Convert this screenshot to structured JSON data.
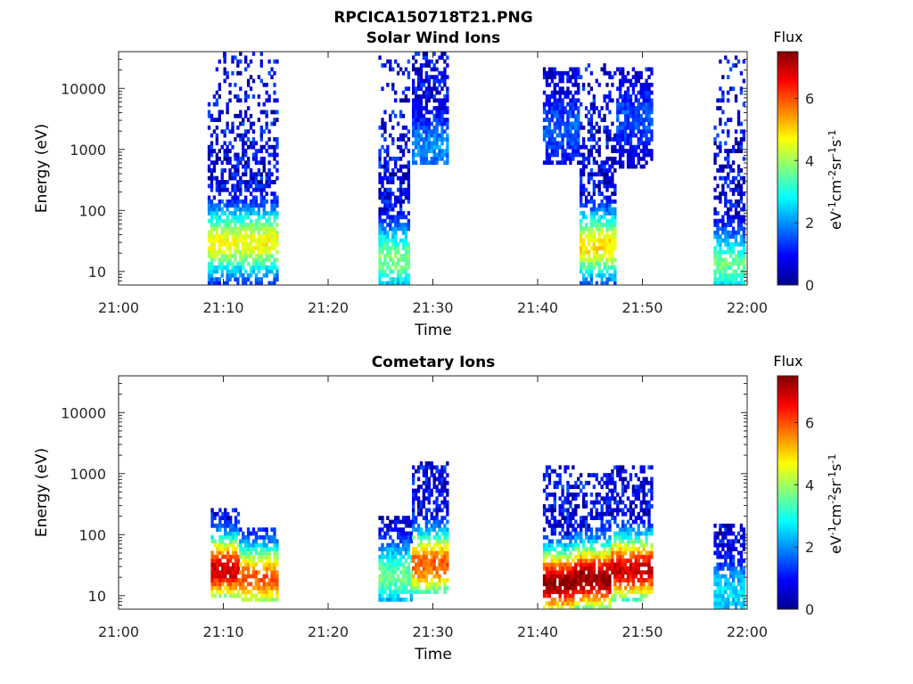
{
  "figure": {
    "title": "RPCICA150718T21.PNG"
  },
  "colormap": {
    "name": "jet",
    "stops": [
      "#00008f",
      "#0000ff",
      "#00ffff",
      "#80ff80",
      "#ffff00",
      "#ff0000",
      "#800000"
    ]
  },
  "chart_data": [
    {
      "type": "heatmap",
      "title": "Solar Wind Ions",
      "xlabel": "Time",
      "ylabel": "Energy (eV)",
      "x_ticks": [
        "21:00",
        "21:10",
        "21:20",
        "21:30",
        "21:40",
        "21:50",
        "22:00"
      ],
      "x_range_minutes": [
        0,
        60
      ],
      "y_scale": "log",
      "y_ticks": [
        "10",
        "100",
        "1000",
        "10000"
      ],
      "y_range": [
        6,
        40000
      ],
      "colorbar": {
        "label": "Flux",
        "unit_label": "eV-1cm-2sr-1s-1",
        "ticks": [
          "0",
          "2",
          "4",
          "6"
        ],
        "range": [
          0,
          7.5
        ]
      },
      "bursts": [
        {
          "start_min": 8.5,
          "end_min": 15.2,
          "emin": 6,
          "emax": 35000,
          "peak_energy": 28,
          "peak_flux": 4.2
        },
        {
          "start_min": 24.8,
          "end_min": 27.8,
          "emin": 6,
          "emax": 40000,
          "peak_energy": 15,
          "peak_flux": 3.4
        },
        {
          "start_min": 28.0,
          "end_min": 31.5,
          "emin": 600,
          "emax": 35000,
          "peak_energy": 1000,
          "peak_flux": 1.6
        },
        {
          "start_min": 40.5,
          "end_min": 44.0,
          "emin": 600,
          "emax": 20000,
          "peak_energy": 2000,
          "peak_flux": 1.2
        },
        {
          "start_min": 44.0,
          "end_min": 47.5,
          "emin": 6,
          "emax": 25000,
          "peak_energy": 25,
          "peak_flux": 4.5
        },
        {
          "start_min": 47.5,
          "end_min": 51.0,
          "emin": 500,
          "emax": 20000,
          "peak_energy": 3000,
          "peak_flux": 1.1
        },
        {
          "start_min": 56.8,
          "end_min": 59.8,
          "emin": 6,
          "emax": 30000,
          "peak_energy": 12,
          "peak_flux": 3.2
        }
      ]
    },
    {
      "type": "heatmap",
      "title": "Cometary Ions",
      "xlabel": "Time",
      "ylabel": "Energy (eV)",
      "x_ticks": [
        "21:00",
        "21:10",
        "21:20",
        "21:30",
        "21:40",
        "21:50",
        "22:00"
      ],
      "x_range_minutes": [
        0,
        60
      ],
      "y_scale": "log",
      "y_ticks": [
        "10",
        "100",
        "1000",
        "10000"
      ],
      "y_range": [
        6,
        40000
      ],
      "colorbar": {
        "label": "Flux",
        "unit_label": "eV-1cm-2sr-1s-1",
        "ticks": [
          "0",
          "2",
          "4",
          "6"
        ],
        "range": [
          0,
          7.5
        ]
      },
      "bursts": [
        {
          "start_min": 8.8,
          "end_min": 11.5,
          "emin": 10,
          "emax": 250,
          "peak_energy": 25,
          "peak_flux": 6.5
        },
        {
          "start_min": 11.5,
          "end_min": 15.2,
          "emin": 8,
          "emax": 130,
          "peak_energy": 18,
          "peak_flux": 5.5
        },
        {
          "start_min": 24.8,
          "end_min": 28.0,
          "emin": 8,
          "emax": 200,
          "peak_energy": 20,
          "peak_flux": 3.2
        },
        {
          "start_min": 28.0,
          "end_min": 31.3,
          "emin": 12,
          "emax": 1500,
          "peak_energy": 30,
          "peak_flux": 5.5
        },
        {
          "start_min": 40.5,
          "end_min": 43.5,
          "emin": 6,
          "emax": 1200,
          "peak_energy": 15,
          "peak_flux": 7.0
        },
        {
          "start_min": 43.5,
          "end_min": 47.0,
          "emin": 6,
          "emax": 900,
          "peak_energy": 18,
          "peak_flux": 7.0
        },
        {
          "start_min": 47.0,
          "end_min": 51.0,
          "emin": 8,
          "emax": 1300,
          "peak_energy": 25,
          "peak_flux": 6.5
        },
        {
          "start_min": 56.8,
          "end_min": 59.8,
          "emin": 6,
          "emax": 150,
          "peak_energy": 10,
          "peak_flux": 2.2
        }
      ]
    }
  ]
}
